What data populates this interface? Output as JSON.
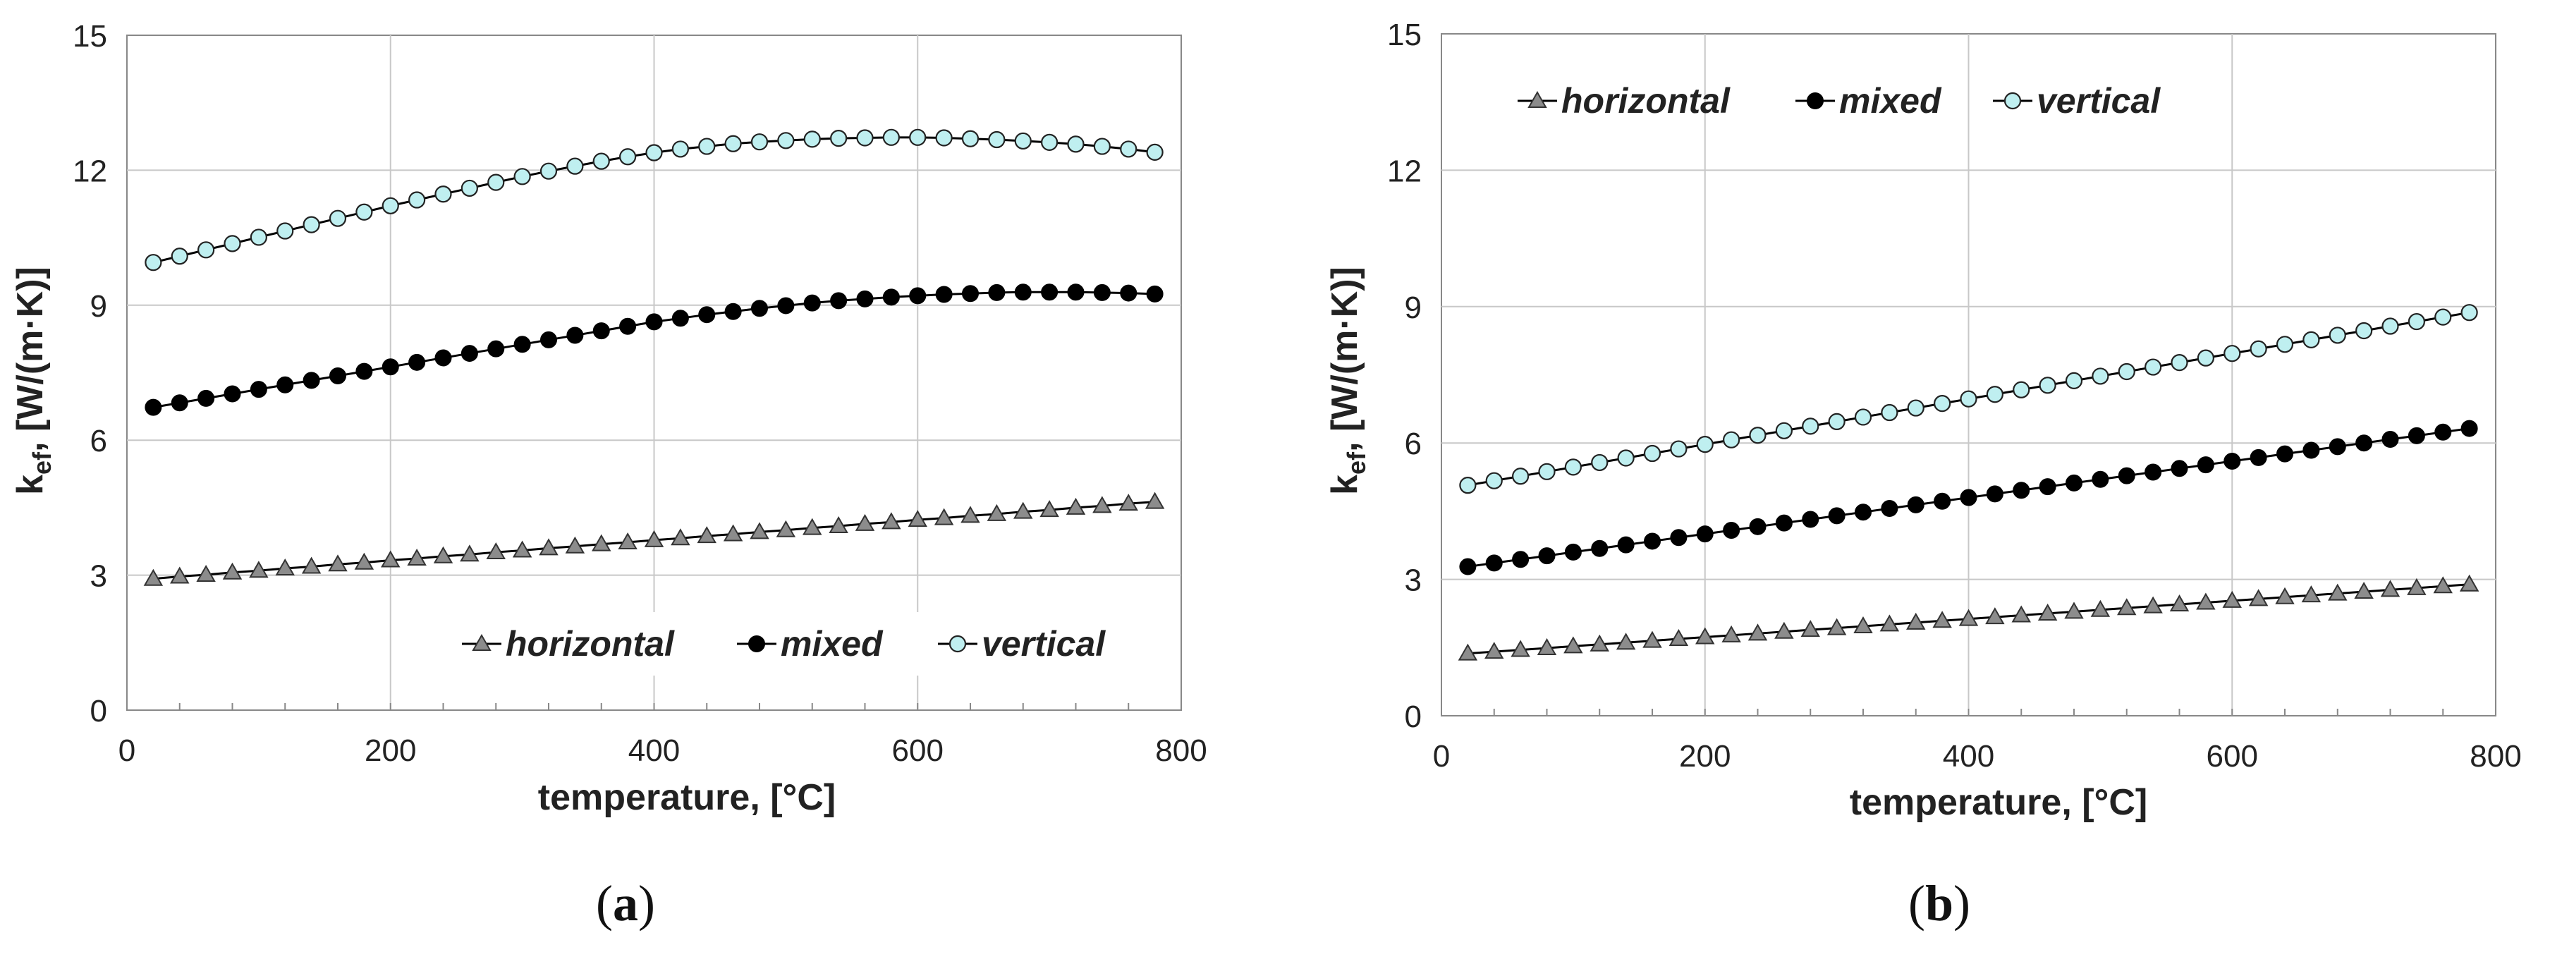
{
  "figure": {
    "panels": [
      "(a)",
      "(b)"
    ]
  },
  "chart_data": [
    {
      "type": "line",
      "caption_prefix": "(",
      "caption_letter": "a",
      "caption_suffix": ")",
      "xlabel": "temperature, [°C]",
      "ylabel_main": "k",
      "ylabel_sub": "ef",
      "ylabel_units": ", [W/(m·K)]",
      "xlim": [
        0,
        800
      ],
      "ylim": [
        0,
        15
      ],
      "xticks": [
        "0",
        "200",
        "400",
        "600",
        "800"
      ],
      "yticks": [
        "0",
        "3",
        "6",
        "9",
        "12",
        "15"
      ],
      "grid": true,
      "legend_position": "bottom-right",
      "x": [
        20,
        40,
        60,
        80,
        100,
        120,
        140,
        160,
        180,
        200,
        220,
        240,
        260,
        280,
        300,
        320,
        340,
        360,
        380,
        400,
        420,
        440,
        460,
        480,
        500,
        520,
        540,
        560,
        580,
        600,
        620,
        640,
        660,
        680,
        700,
        720,
        740,
        760,
        780
      ],
      "series": [
        {
          "name": "horizontal",
          "marker": "triangle",
          "color": "#8c8c8c",
          "values": [
            2.92,
            2.97,
            3.01,
            3.06,
            3.1,
            3.15,
            3.19,
            3.24,
            3.28,
            3.33,
            3.37,
            3.42,
            3.46,
            3.51,
            3.55,
            3.6,
            3.64,
            3.69,
            3.73,
            3.78,
            3.82,
            3.87,
            3.91,
            3.96,
            4.0,
            4.05,
            4.09,
            4.14,
            4.18,
            4.23,
            4.27,
            4.32,
            4.36,
            4.41,
            4.45,
            4.5,
            4.54,
            4.59,
            4.63
          ]
        },
        {
          "name": "mixed",
          "marker": "circle",
          "color": "#000000",
          "values": [
            6.73,
            6.83,
            6.93,
            7.03,
            7.13,
            7.23,
            7.33,
            7.43,
            7.53,
            7.63,
            7.73,
            7.83,
            7.93,
            8.03,
            8.13,
            8.23,
            8.33,
            8.43,
            8.53,
            8.63,
            8.71,
            8.79,
            8.86,
            8.93,
            8.99,
            9.05,
            9.1,
            9.14,
            9.18,
            9.21,
            9.24,
            9.26,
            9.28,
            9.29,
            9.29,
            9.29,
            9.28,
            9.27,
            9.25
          ]
        },
        {
          "name": "vertical",
          "marker": "circle-open",
          "color": "#bfeff0",
          "values": [
            9.95,
            10.09,
            10.23,
            10.37,
            10.51,
            10.65,
            10.79,
            10.93,
            11.07,
            11.21,
            11.34,
            11.47,
            11.6,
            11.73,
            11.86,
            11.98,
            12.09,
            12.2,
            12.3,
            12.39,
            12.47,
            12.53,
            12.59,
            12.63,
            12.66,
            12.69,
            12.71,
            12.72,
            12.73,
            12.73,
            12.72,
            12.7,
            12.68,
            12.65,
            12.62,
            12.58,
            12.53,
            12.47,
            12.4
          ]
        }
      ]
    },
    {
      "type": "line",
      "caption_prefix": "(",
      "caption_letter": "b",
      "caption_suffix": ")",
      "xlabel": "temperature, [°C]",
      "ylabel_main": "k",
      "ylabel_sub": "ef",
      "ylabel_units": ", [W/(m·K)]",
      "xlim": [
        0,
        800
      ],
      "ylim": [
        0,
        15
      ],
      "xticks": [
        "0",
        "200",
        "400",
        "600",
        "800"
      ],
      "yticks": [
        "0",
        "3",
        "6",
        "9",
        "12",
        "15"
      ],
      "grid": true,
      "legend_position": "top-left",
      "x": [
        20,
        40,
        60,
        80,
        100,
        120,
        140,
        160,
        180,
        200,
        220,
        240,
        260,
        280,
        300,
        320,
        340,
        360,
        380,
        400,
        420,
        440,
        460,
        480,
        500,
        520,
        540,
        560,
        580,
        600,
        620,
        640,
        660,
        680,
        700,
        720,
        740,
        760,
        780
      ],
      "series": [
        {
          "name": "horizontal",
          "marker": "triangle",
          "color": "#8c8c8c",
          "values": [
            1.37,
            1.41,
            1.45,
            1.49,
            1.53,
            1.57,
            1.61,
            1.65,
            1.69,
            1.73,
            1.77,
            1.81,
            1.85,
            1.89,
            1.93,
            1.97,
            2.01,
            2.05,
            2.09,
            2.13,
            2.17,
            2.21,
            2.25,
            2.29,
            2.33,
            2.37,
            2.41,
            2.45,
            2.49,
            2.53,
            2.57,
            2.61,
            2.65,
            2.69,
            2.73,
            2.77,
            2.81,
            2.85,
            2.89
          ]
        },
        {
          "name": "mixed",
          "marker": "circle",
          "color": "#000000",
          "values": [
            3.28,
            3.36,
            3.44,
            3.52,
            3.6,
            3.68,
            3.76,
            3.84,
            3.92,
            4.0,
            4.08,
            4.16,
            4.24,
            4.32,
            4.4,
            4.48,
            4.56,
            4.64,
            4.72,
            4.8,
            4.88,
            4.96,
            5.04,
            5.12,
            5.2,
            5.28,
            5.36,
            5.44,
            5.52,
            5.6,
            5.68,
            5.76,
            5.84,
            5.92,
            6.0,
            6.08,
            6.16,
            6.24,
            6.32
          ]
        },
        {
          "name": "vertical",
          "marker": "circle-open",
          "color": "#bfeff0",
          "values": [
            5.07,
            5.17,
            5.27,
            5.37,
            5.47,
            5.57,
            5.67,
            5.77,
            5.87,
            5.97,
            6.07,
            6.17,
            6.27,
            6.37,
            6.47,
            6.57,
            6.67,
            6.77,
            6.87,
            6.97,
            7.07,
            7.17,
            7.27,
            7.37,
            7.47,
            7.57,
            7.67,
            7.77,
            7.87,
            7.97,
            8.07,
            8.17,
            8.27,
            8.37,
            8.47,
            8.57,
            8.67,
            8.77,
            8.87
          ]
        }
      ]
    }
  ]
}
